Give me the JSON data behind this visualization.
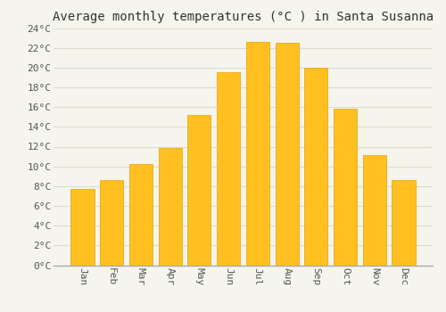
{
  "title": "Average monthly temperatures (°C ) in Santa Susanna",
  "months": [
    "Jan",
    "Feb",
    "Mar",
    "Apr",
    "May",
    "Jun",
    "Jul",
    "Aug",
    "Sep",
    "Oct",
    "Nov",
    "Dec"
  ],
  "temperatures": [
    7.7,
    8.6,
    10.2,
    11.9,
    15.2,
    19.5,
    22.6,
    22.5,
    20.0,
    15.8,
    11.1,
    8.6
  ],
  "bar_color_top": "#FFC020",
  "bar_color_bottom": "#E8960A",
  "bar_edge_color": "#E8A000",
  "background_color": "#F5F5EE",
  "plot_bg_color": "#F5F5EE",
  "grid_color": "#DDDDCC",
  "ylim": [
    0,
    24
  ],
  "yticks": [
    0,
    2,
    4,
    6,
    8,
    10,
    12,
    14,
    16,
    18,
    20,
    22,
    24
  ],
  "title_fontsize": 10,
  "tick_fontsize": 8,
  "font_family": "monospace"
}
